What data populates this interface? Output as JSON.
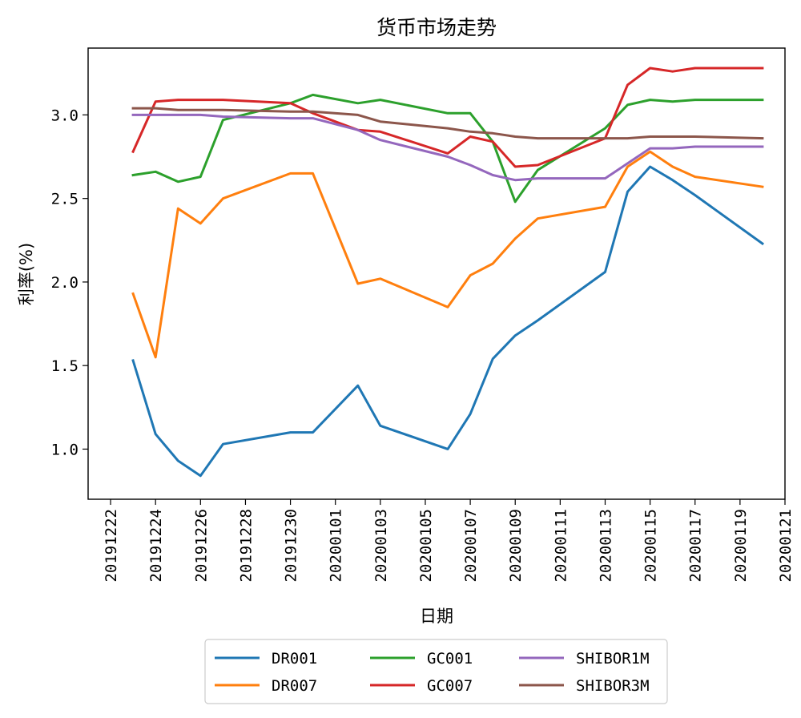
{
  "chart_data": {
    "type": "line",
    "title": "货币市场走势",
    "xlabel": "日期",
    "ylabel": "利率(%)",
    "xlim": [
      "2019-12-21",
      "2020-01-21"
    ],
    "ylim": [
      0.7,
      3.4
    ],
    "x_ticks": [
      "20191222",
      "20191224",
      "20191226",
      "20191228",
      "20191230",
      "20200101",
      "20200103",
      "20200105",
      "20200107",
      "20200109",
      "20200111",
      "20200113",
      "20200115",
      "20200117",
      "20200119",
      "20200121"
    ],
    "y_ticks": [
      "1.0",
      "1.5",
      "2.0",
      "2.5",
      "3.0"
    ],
    "legend_position": "bottom-center",
    "x": [
      "2019-12-23",
      "2019-12-24",
      "2019-12-25",
      "2019-12-26",
      "2019-12-27",
      "2019-12-30",
      "2019-12-31",
      "2020-01-02",
      "2020-01-03",
      "2020-01-06",
      "2020-01-07",
      "2020-01-08",
      "2020-01-09",
      "2020-01-10",
      "2020-01-13",
      "2020-01-14",
      "2020-01-15",
      "2020-01-16",
      "2020-01-17",
      "2020-01-20"
    ],
    "series": [
      {
        "name": "DR001",
        "color": "#1f77b4",
        "values": [
          1.53,
          1.09,
          0.93,
          0.84,
          1.03,
          1.1,
          1.1,
          1.38,
          1.14,
          1.0,
          1.21,
          1.54,
          1.68,
          1.77,
          2.06,
          2.54,
          2.69,
          2.61,
          2.52,
          2.23
        ]
      },
      {
        "name": "DR007",
        "color": "#ff7f0e",
        "values": [
          1.93,
          1.55,
          2.44,
          2.35,
          2.5,
          2.65,
          2.65,
          1.99,
          2.02,
          1.85,
          2.04,
          2.11,
          2.26,
          2.38,
          2.45,
          2.69,
          2.78,
          2.69,
          2.63,
          2.57
        ]
      },
      {
        "name": "GC001",
        "color": "#2ca02c",
        "values": [
          2.64,
          2.66,
          2.6,
          2.63,
          2.97,
          3.07,
          3.12,
          3.07,
          3.09,
          3.01,
          3.01,
          2.84,
          2.48,
          2.67,
          2.92,
          3.06,
          3.09,
          3.08,
          3.09,
          3.09
        ]
      },
      {
        "name": "GC007",
        "color": "#d62728",
        "values": [
          2.78,
          3.08,
          3.09,
          3.09,
          3.09,
          3.07,
          3.01,
          2.91,
          2.9,
          2.77,
          2.87,
          2.84,
          2.69,
          2.7,
          2.86,
          3.18,
          3.28,
          3.26,
          3.28,
          3.28
        ]
      },
      {
        "name": "SHIBOR1M",
        "color": "#9467bd",
        "values": [
          3.0,
          3.0,
          3.0,
          3.0,
          2.99,
          2.98,
          2.98,
          2.91,
          2.85,
          2.75,
          2.7,
          2.64,
          2.61,
          2.62,
          2.62,
          2.71,
          2.8,
          2.8,
          2.81,
          2.81
        ]
      },
      {
        "name": "SHIBOR3M",
        "color": "#8c564b",
        "values": [
          3.04,
          3.04,
          3.03,
          3.03,
          3.03,
          3.02,
          3.02,
          3.0,
          2.96,
          2.92,
          2.9,
          2.89,
          2.87,
          2.86,
          2.86,
          2.86,
          2.87,
          2.87,
          2.87,
          2.86
        ]
      }
    ]
  }
}
